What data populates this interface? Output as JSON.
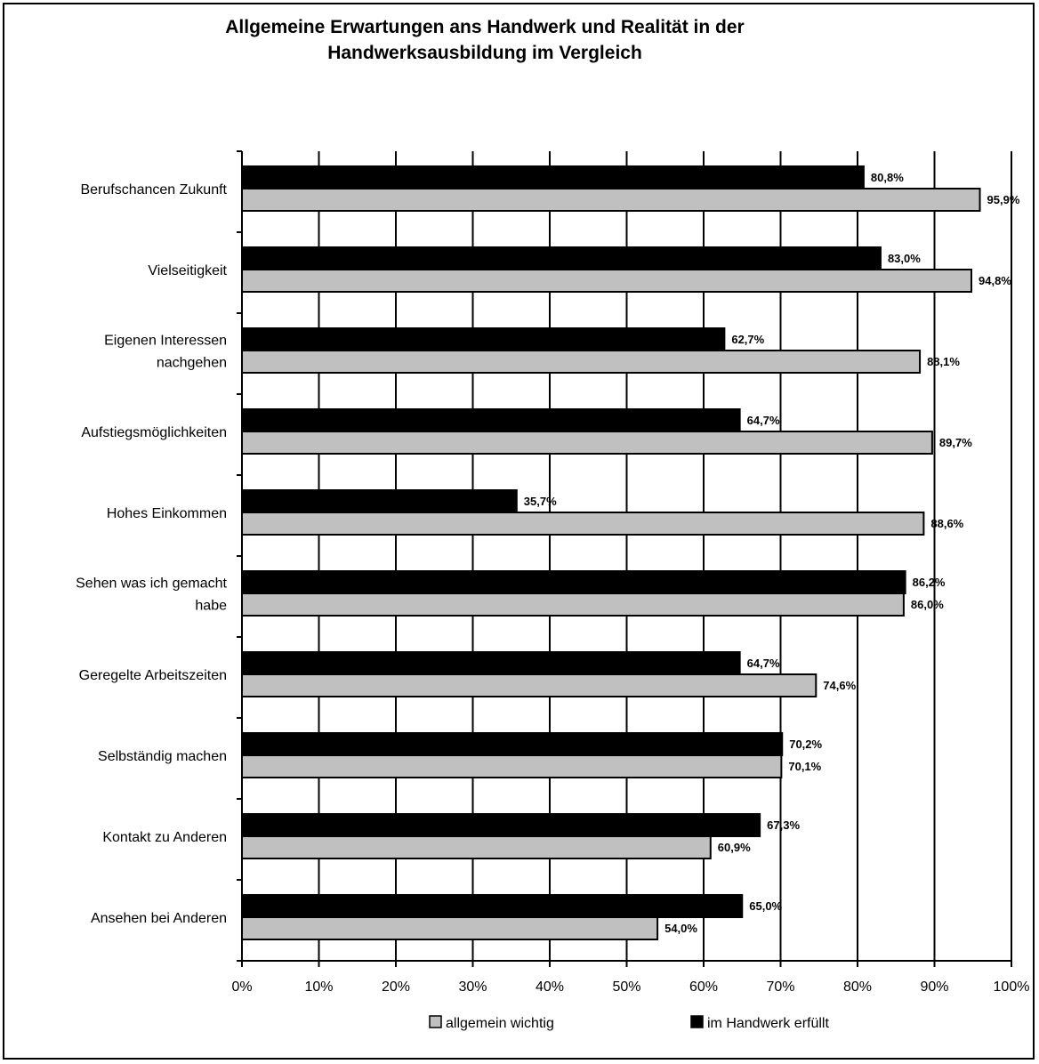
{
  "chart_data": {
    "type": "bar",
    "orientation": "horizontal",
    "title_lines": [
      "Allgemeine Erwartungen ans Handwerk und Realität in der",
      "Handwerksausbildung im Vergleich"
    ],
    "categories": [
      [
        "Berufschancen Zukunft"
      ],
      [
        "Vielseitigkeit"
      ],
      [
        "Eigenen Interessen",
        "nachgehen"
      ],
      [
        "Aufstiegsmöglichkeiten"
      ],
      [
        "Hohes Einkommen"
      ],
      [
        "Sehen was ich gemacht",
        "habe"
      ],
      [
        "Geregelte Arbeitszeiten"
      ],
      [
        "Selbständig machen"
      ],
      [
        "Kontakt zu Anderen"
      ],
      [
        "Ansehen bei Anderen"
      ]
    ],
    "series": [
      {
        "name": "im Handwerk erfüllt",
        "color": "#000000",
        "values": [
          80.8,
          83.0,
          62.7,
          64.7,
          35.7,
          86.2,
          64.7,
          70.2,
          67.3,
          65.0
        ],
        "labels": [
          "80,8%",
          "83,0%",
          "62,7%",
          "64,7%",
          "35,7%",
          "86,2%",
          "64,7%",
          "70,2%",
          "67,3%",
          "65,0%"
        ]
      },
      {
        "name": "allgemein wichtig",
        "color": "#c0c0c0",
        "values": [
          95.9,
          94.8,
          88.1,
          89.7,
          88.6,
          86.0,
          74.6,
          70.1,
          60.9,
          54.0
        ],
        "labels": [
          "95,9%",
          "94,8%",
          "88,1%",
          "89,7%",
          "88,6%",
          "86,0%",
          "74,6%",
          "70,1%",
          "60,9%",
          "54,0%"
        ]
      }
    ],
    "xlim": [
      0,
      100
    ],
    "xticks": [
      0,
      10,
      20,
      30,
      40,
      50,
      60,
      70,
      80,
      90,
      100
    ],
    "xtick_labels": [
      "0%",
      "10%",
      "20%",
      "30%",
      "40%",
      "50%",
      "60%",
      "70%",
      "80%",
      "90%",
      "100%"
    ],
    "grid": true,
    "legend": {
      "position": "bottom",
      "items": [
        "allgemein wichtig",
        "im Handwerk erfüllt"
      ]
    }
  }
}
